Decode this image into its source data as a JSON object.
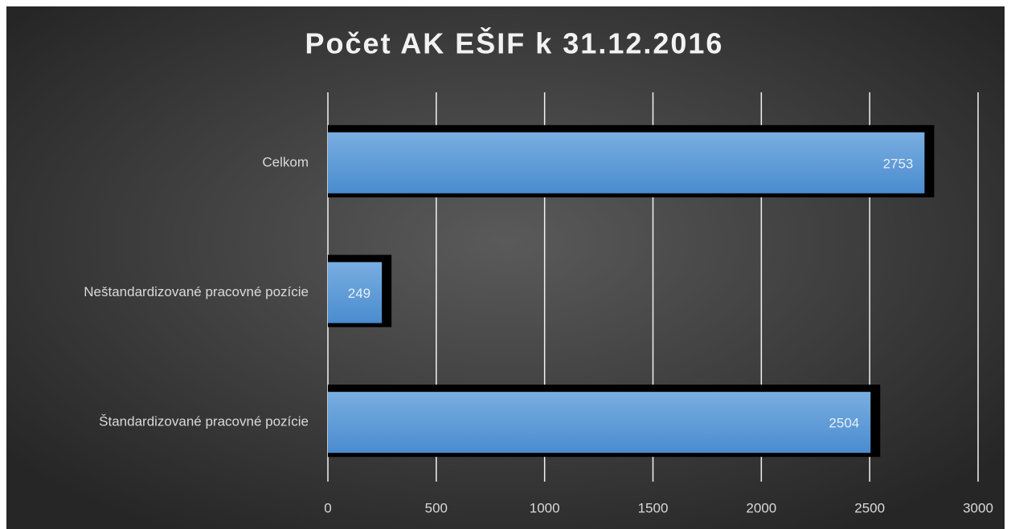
{
  "chart_data": {
    "type": "bar",
    "orientation": "horizontal",
    "title": "Počet AK EŠIF k 31.12.2016",
    "categories": [
      "Celkom",
      "Neštandardizované pracovné pozície",
      "Štandardizované pracovné pozície"
    ],
    "values": [
      2753,
      249,
      2504
    ],
    "color": "#5b9bd5",
    "xlim": [
      0,
      3000
    ],
    "xticks": [
      0,
      500,
      1000,
      1500,
      2000,
      2500,
      3000
    ],
    "grid": true
  }
}
